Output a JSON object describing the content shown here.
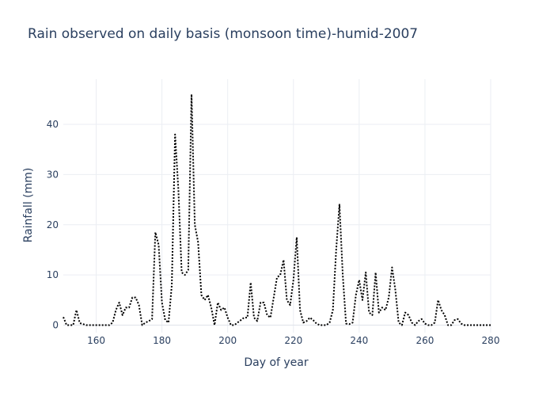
{
  "chart_data": {
    "type": "line",
    "title": "Rain observed on daily basis (monsoon time)-humid-2007",
    "xlabel": "Day of year",
    "ylabel": "Rainfall (mm)",
    "xlim": [
      150,
      280
    ],
    "ylim": [
      -1.5,
      49
    ],
    "xticks": [
      160,
      180,
      200,
      220,
      240,
      260,
      280
    ],
    "yticks": [
      0,
      10,
      20,
      30,
      40
    ],
    "line_style": "dotted",
    "line_color": "#000000",
    "grid": true,
    "series": [
      {
        "x": [
          150,
          151,
          152,
          153,
          154,
          155,
          156,
          157,
          158,
          159,
          160,
          161,
          162,
          163,
          164,
          165,
          166,
          167,
          168,
          169,
          170,
          171,
          172,
          173,
          174,
          175,
          176,
          177,
          178,
          179,
          180,
          181,
          182,
          183,
          184,
          185,
          186,
          187,
          188,
          189,
          190,
          191,
          192,
          193,
          194,
          195,
          196,
          197,
          198,
          199,
          200,
          201,
          202,
          203,
          204,
          205,
          206,
          207,
          208,
          209,
          210,
          211,
          212,
          213,
          214,
          215,
          216,
          217,
          218,
          219,
          220,
          221,
          222,
          223,
          224,
          225,
          226,
          227,
          228,
          229,
          230,
          231,
          232,
          233,
          234,
          235,
          236,
          237,
          238,
          239,
          240,
          241,
          242,
          243,
          244,
          245,
          246,
          247,
          248,
          249,
          250,
          251,
          252,
          253,
          254,
          255,
          256,
          257,
          258,
          259,
          260,
          261,
          262,
          263,
          264,
          265,
          266,
          267,
          268,
          269,
          270,
          271,
          272,
          273,
          274,
          275,
          276,
          277,
          278,
          279,
          280
        ],
        "y": [
          1.6,
          0,
          0,
          0,
          3,
          0.4,
          0.2,
          0,
          0,
          0,
          0,
          0,
          0,
          0,
          0,
          0.5,
          3,
          4.5,
          2,
          3.5,
          3.5,
          5.5,
          5.5,
          4,
          0,
          0.5,
          0.8,
          1.2,
          18.5,
          16,
          4.5,
          1,
          0.5,
          8,
          38,
          27,
          10.5,
          10,
          11,
          46,
          20,
          16.5,
          6,
          5,
          6,
          3.5,
          0,
          4.5,
          3,
          3.5,
          1.5,
          0,
          0,
          0.5,
          1,
          1.5,
          1.5,
          8.5,
          1.5,
          0.8,
          4.5,
          4.5,
          2,
          1.5,
          5.5,
          9.5,
          10,
          13,
          5,
          4,
          9,
          17.5,
          3,
          0.5,
          0.8,
          1.5,
          1,
          0.3,
          0,
          0,
          0,
          0.5,
          3,
          15,
          24,
          10,
          0.3,
          0.2,
          0.5,
          6,
          9,
          5,
          10.5,
          2.5,
          2,
          10.5,
          2.5,
          3.5,
          3,
          5.5,
          11.5,
          7,
          0.5,
          0,
          2.5,
          2,
          0.5,
          0,
          0.8,
          1.2,
          0.3,
          0,
          0,
          0.5,
          5,
          3,
          2,
          0,
          0,
          1,
          1.2,
          0.3,
          0,
          0,
          0,
          0,
          0,
          0,
          0,
          0,
          0
        ]
      }
    ]
  }
}
